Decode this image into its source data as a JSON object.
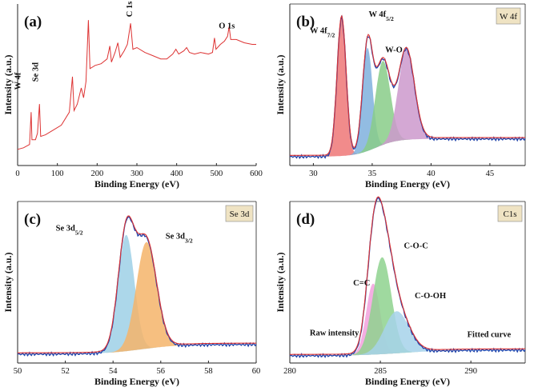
{
  "colors": {
    "survey": "#dd3333",
    "axis": "#222222",
    "raw": "#2244aa",
    "fit": "#dd3333",
    "label_box": "#efe3c3",
    "w_peak1": "#ee7777",
    "w_peak2": "#7fb0dd",
    "w_peak3": "#88cc88",
    "w_peak4": "#cc99cc",
    "se_peak1": "#9ed0e6",
    "se_peak2": "#f5b46a",
    "c_peak1": "#f2a0dd",
    "c_peak2": "#8ed28e",
    "c_peak3": "#a6d2ea"
  },
  "chart_data": [
    {
      "panel": "(a)",
      "type": "line",
      "xlabel": "Binding Energy (eV)",
      "ylabel": "Intensity (a.u.)",
      "xlim": [
        0,
        600
      ],
      "xticks": [
        0,
        100,
        200,
        300,
        400,
        500,
        600
      ],
      "ylim": [
        0,
        1
      ],
      "annotations": [
        {
          "text": "W 4f",
          "x": 35
        },
        {
          "text": "Se 3d",
          "x": 55
        },
        {
          "text": "C 1s",
          "x": 284
        },
        {
          "text": "O 1s",
          "x": 530
        }
      ],
      "series": [
        {
          "points": [
            [
              0,
              0.1
            ],
            [
              15,
              0.11
            ],
            [
              30,
              0.13
            ],
            [
              34,
              0.33
            ],
            [
              36,
              0.16
            ],
            [
              45,
              0.16
            ],
            [
              50,
              0.2
            ],
            [
              55,
              0.38
            ],
            [
              58,
              0.18
            ],
            [
              70,
              0.19
            ],
            [
              90,
              0.22
            ],
            [
              110,
              0.25
            ],
            [
              130,
              0.33
            ],
            [
              138,
              0.55
            ],
            [
              142,
              0.34
            ],
            [
              150,
              0.38
            ],
            [
              160,
              0.48
            ],
            [
              166,
              0.42
            ],
            [
              172,
              0.52
            ],
            [
              178,
              0.9
            ],
            [
              182,
              0.6
            ],
            [
              195,
              0.62
            ],
            [
              210,
              0.63
            ],
            [
              225,
              0.66
            ],
            [
              232,
              0.74
            ],
            [
              236,
              0.64
            ],
            [
              245,
              0.7
            ],
            [
              252,
              0.76
            ],
            [
              258,
              0.67
            ],
            [
              268,
              0.71
            ],
            [
              276,
              0.75
            ],
            [
              284,
              0.88
            ],
            [
              290,
              0.72
            ],
            [
              300,
              0.73
            ],
            [
              320,
              0.7
            ],
            [
              340,
              0.68
            ],
            [
              360,
              0.66
            ],
            [
              375,
              0.66
            ],
            [
              390,
              0.69
            ],
            [
              398,
              0.72
            ],
            [
              405,
              0.69
            ],
            [
              418,
              0.71
            ],
            [
              425,
              0.73
            ],
            [
              432,
              0.7
            ],
            [
              445,
              0.69
            ],
            [
              460,
              0.7
            ],
            [
              480,
              0.69
            ],
            [
              490,
              0.7
            ],
            [
              495,
              0.79
            ],
            [
              499,
              0.72
            ],
            [
              510,
              0.75
            ],
            [
              520,
              0.77
            ],
            [
              528,
              0.8
            ],
            [
              532,
              0.86
            ],
            [
              536,
              0.78
            ],
            [
              550,
              0.78
            ],
            [
              570,
              0.76
            ],
            [
              590,
              0.75
            ],
            [
              600,
              0.75
            ]
          ]
        }
      ]
    },
    {
      "panel": "(b)",
      "type": "area",
      "label_box": "W 4f",
      "xlabel": "Binding Energy (eV)",
      "ylabel": "Intensity (a.u.)",
      "xlim": [
        28,
        48
      ],
      "xticks": [
        30,
        35,
        40,
        45
      ],
      "ylim": [
        0,
        1
      ],
      "annotations": [
        {
          "text": "W 4f7/2",
          "x": 29.7,
          "y": 0.82
        },
        {
          "text": "W 4f5/2",
          "x": 34.7,
          "y": 0.92
        },
        {
          "text": "W-O",
          "x": 36.1,
          "y": 0.7
        }
      ],
      "series": [
        {
          "kind": "component",
          "color_key": "w_peak1",
          "center": 32.4,
          "height": 0.86,
          "fwhm": 0.9
        },
        {
          "kind": "component",
          "color_key": "w_peak2",
          "center": 34.6,
          "height": 0.64,
          "fwhm": 1.0
        },
        {
          "kind": "component",
          "color_key": "w_peak3",
          "center": 35.9,
          "height": 0.52,
          "fwhm": 1.5
        },
        {
          "kind": "component",
          "color_key": "w_peak4",
          "center": 37.9,
          "height": 0.56,
          "fwhm": 1.6
        },
        {
          "kind": "raw",
          "color_key": "raw"
        },
        {
          "kind": "fit",
          "color_key": "fit"
        }
      ]
    },
    {
      "panel": "(c)",
      "type": "area",
      "label_box": "Se 3d",
      "xlabel": "Binding Energy (eV)",
      "ylabel": "Intensity (a.u.)",
      "xlim": [
        50,
        60
      ],
      "xticks": [
        50,
        52,
        54,
        56,
        58,
        60
      ],
      "ylim": [
        0,
        1
      ],
      "annotations": [
        {
          "text": "Se 3d5/2",
          "x": 51.6,
          "y": 0.82
        },
        {
          "text": "Se 3d3/2",
          "x": 56.2,
          "y": 0.77
        }
      ],
      "series": [
        {
          "kind": "component",
          "color_key": "se_peak1",
          "center": 54.55,
          "height": 0.72,
          "fwhm": 0.8
        },
        {
          "kind": "component",
          "color_key": "se_peak2",
          "center": 55.4,
          "height": 0.66,
          "fwhm": 1.0
        },
        {
          "kind": "raw",
          "color_key": "raw"
        },
        {
          "kind": "fit",
          "color_key": "fit"
        }
      ]
    },
    {
      "panel": "(d)",
      "type": "area",
      "label_box": "C1s",
      "xlabel": "Binding Energy (eV)",
      "ylabel": "Intensity (a.u.)",
      "xlim": [
        280,
        293
      ],
      "xticks": [
        280,
        285,
        290
      ],
      "ylim": [
        0,
        1
      ],
      "annotations": [
        {
          "text": "C=C",
          "x": 283.5,
          "y": 0.48
        },
        {
          "text": "C-O-C",
          "x": 286.3,
          "y": 0.71
        },
        {
          "text": "C-O-OH",
          "x": 286.9,
          "y": 0.4
        },
        {
          "text": "Raw intensity",
          "x": 281.1,
          "y": 0.17
        },
        {
          "text": "Fitted curve",
          "x": 289.8,
          "y": 0.16
        }
      ],
      "series": [
        {
          "kind": "component",
          "color_key": "c_peak1",
          "center": 284.6,
          "height": 0.44,
          "fwhm": 0.9
        },
        {
          "kind": "component",
          "color_key": "c_peak2",
          "center": 285.1,
          "height": 0.6,
          "fwhm": 1.2
        },
        {
          "kind": "component",
          "color_key": "c_peak3",
          "center": 285.9,
          "height": 0.26,
          "fwhm": 1.6
        },
        {
          "kind": "raw",
          "color_key": "raw"
        },
        {
          "kind": "fit",
          "color_key": "fit"
        }
      ]
    }
  ]
}
